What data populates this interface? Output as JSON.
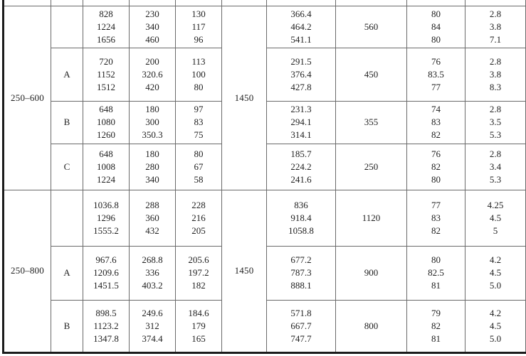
{
  "document": {
    "kind": "specification-table-fragment",
    "note_top_partial_row": true
  },
  "colors": {
    "highlight_fill": "#cde9f6",
    "grid_line": "#6a6a6a",
    "outer_border": "#1b1b1b",
    "text": "#1f1f1f"
  },
  "table": {
    "blocks": [
      {
        "model": "250–600",
        "speed": "1450",
        "groups": [
          {
            "variant": "",
            "highlighted": false,
            "col3": [
              "828",
              "1224",
              "1656"
            ],
            "col4": [
              "230",
              "340",
              "460"
            ],
            "col5": [
              "130",
              "117",
              "96"
            ],
            "col7": [
              "366.4",
              "464.2",
              "541.1"
            ],
            "col8": "560",
            "col9": [
              "80",
              "84",
              "80"
            ],
            "col10": [
              "2.8",
              "3.8",
              "7.1"
            ]
          },
          {
            "variant": "A",
            "highlighted": true,
            "col3": [
              "720",
              "1152",
              "1512"
            ],
            "col4": [
              "200",
              "320.6",
              "420"
            ],
            "col5": [
              "113",
              "100",
              "80"
            ],
            "col7": [
              "291.5",
              "376.4",
              "427.8"
            ],
            "col8": "450",
            "col9": [
              "76",
              "83.5",
              "77"
            ],
            "col10": [
              "2.8",
              "3.8",
              "8.3"
            ]
          },
          {
            "variant": "B",
            "highlighted": false,
            "col3": [
              "648",
              "1080",
              "1260"
            ],
            "col4": [
              "180",
              "300",
              "350.3"
            ],
            "col5": [
              "97",
              "83",
              "75"
            ],
            "col7": [
              "231.3",
              "294.1",
              "314.1"
            ],
            "col8": "355",
            "col9": [
              "74",
              "83",
              "82"
            ],
            "col10": [
              "2.8",
              "3.5",
              "5.3"
            ]
          },
          {
            "variant": "C",
            "highlighted": true,
            "col3": [
              "648",
              "1008",
              "1224"
            ],
            "col4": [
              "180",
              "280",
              "340"
            ],
            "col5": [
              "80",
              "67",
              "58"
            ],
            "col7": [
              "185.7",
              "224.2",
              "241.6"
            ],
            "col8": "250",
            "col9": [
              "76",
              "82",
              "80"
            ],
            "col10": [
              "2.8",
              "3.4",
              "5.3"
            ]
          }
        ]
      },
      {
        "model": "250–800",
        "speed": "1450",
        "groups": [
          {
            "variant": "",
            "highlighted": false,
            "col3": [
              "1036.8",
              "1296",
              "1555.2"
            ],
            "col4": [
              "288",
              "360",
              "432"
            ],
            "col5": [
              "228",
              "216",
              "205"
            ],
            "col7": [
              "836",
              "918.4",
              "1058.8"
            ],
            "col8": "1120",
            "col9": [
              "77",
              "83",
              "82"
            ],
            "col10": [
              "4.25",
              "4.5",
              "5"
            ]
          },
          {
            "variant": "A",
            "highlighted": true,
            "col3": [
              "967.6",
              "1209.6",
              "1451.5"
            ],
            "col4": [
              "268.8",
              "336",
              "403.2"
            ],
            "col5": [
              "205.6",
              "197.2",
              "182"
            ],
            "col7": [
              "677.2",
              "787.3",
              "888.1"
            ],
            "col8": "900",
            "col9": [
              "80",
              "82.5",
              "81"
            ],
            "col10": [
              "4.2",
              "4.5",
              "5.0"
            ]
          },
          {
            "variant": "B",
            "highlighted": false,
            "col3": [
              "898.5",
              "1123.2",
              "1347.8"
            ],
            "col4": [
              "249.6",
              "312",
              "374.4"
            ],
            "col5": [
              "184.6",
              "179",
              "165"
            ],
            "col7": [
              "571.8",
              "667.7",
              "747.7"
            ],
            "col8": "800",
            "col9": [
              "79",
              "82",
              "81"
            ],
            "col10": [
              "4.2",
              "4.5",
              "5.0"
            ]
          }
        ]
      }
    ]
  }
}
